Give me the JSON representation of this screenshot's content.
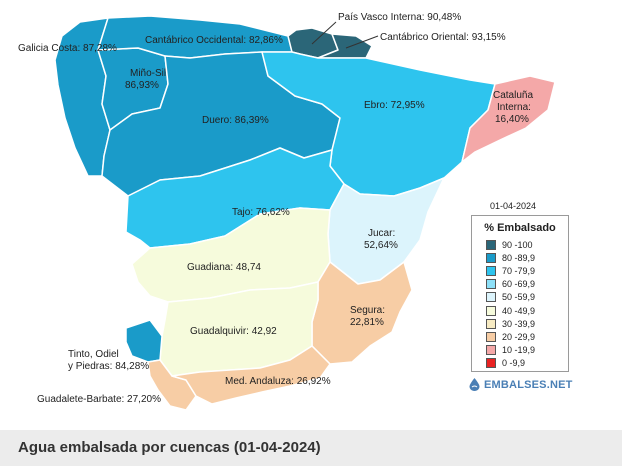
{
  "map": {
    "legend_date": "01-04-2024",
    "legend_title": "% Embalsado",
    "legend_items": [
      {
        "label": "90 -100",
        "color": "#2b6678"
      },
      {
        "label": "80 -89,9",
        "color": "#1a9bc9"
      },
      {
        "label": "70 -79,9",
        "color": "#2ec4ee"
      },
      {
        "label": "60 -69,9",
        "color": "#8de0f8"
      },
      {
        "label": "50 -59,9",
        "color": "#dcf4fc"
      },
      {
        "label": "40 -49,9",
        "color": "#f6fbdc"
      },
      {
        "label": "30 -39,9",
        "color": "#f7ebc3"
      },
      {
        "label": "20 -29,9",
        "color": "#f7cda5"
      },
      {
        "label": "10 -19,9",
        "color": "#f4a8a8"
      },
      {
        "label": "0 -9,9",
        "color": "#e82222"
      }
    ],
    "brand": "EMBALSES.NET",
    "regions": {
      "galicia": {
        "name": "Galicia Costa",
        "value": "87,28%",
        "label": "Galicia Costa: 87,28%",
        "color": "#1a9bc9"
      },
      "minosil": {
        "name": "Miño-Sil",
        "value": "86,93%",
        "label_line1": "Miño-Sil",
        "label_line2": "86,93%",
        "color": "#1a9bc9"
      },
      "cantabrico_occ": {
        "name": "Cantábrico Occidental",
        "value": "82,86%",
        "label": "Cantábrico Occidental: 82,86%",
        "color": "#1a9bc9"
      },
      "pais_vasco": {
        "name": "País Vasco Interna",
        "value": "90,48%",
        "label": "País Vasco Interna: 90,48%",
        "color": "#2b6678"
      },
      "cantabrico_or": {
        "name": "Cantábrico Oriental",
        "value": "93,15%",
        "label": "Cantábrico Oriental: 93,15%",
        "color": "#2b6678"
      },
      "duero": {
        "name": "Duero",
        "value": "86,39%",
        "label": "Duero: 86,39%",
        "color": "#1a9bc9"
      },
      "ebro": {
        "name": "Ebro",
        "value": "72,95%",
        "label": "Ebro: 72,95%",
        "color": "#2ec4ee"
      },
      "cataluna": {
        "name": "Cataluña Interna",
        "value": "16,40%",
        "label_line1": "Cataluña",
        "label_line2": "Interna:",
        "label_line3": "16,40%",
        "color": "#f4a8a8"
      },
      "tajo": {
        "name": "Tajo",
        "value": "76,62%",
        "label": "Tajo: 76,62%",
        "color": "#2ec4ee"
      },
      "jucar": {
        "name": "Jucar",
        "value": "52,64%",
        "label_line1": "Jucar:",
        "label_line2": "52,64%",
        "color": "#dcf4fc"
      },
      "guadiana": {
        "name": "Guadiana",
        "value": "48,74",
        "label": "Guadiana: 48,74",
        "color": "#f6fbdc"
      },
      "segura": {
        "name": "Segura",
        "value": "22,81%",
        "label_line1": "Segura:",
        "label_line2": "22,81%",
        "color": "#f7cda5"
      },
      "guadalquivir": {
        "name": "Guadalquivir",
        "value": "42,92",
        "label": "Guadalquivir: 42,92",
        "color": "#f6fbdc"
      },
      "tinto": {
        "name": "Tinto, Odiel y Piedras",
        "value": "84,28%",
        "label_line1": "Tinto, Odiel",
        "label_line2": "y Piedras: 84,28%",
        "color": "#1a9bc9"
      },
      "med_andaluza": {
        "name": "Med. Andaluza",
        "value": "26,92%",
        "label": "Med. Andaluza: 26,92%",
        "color": "#f7cda5"
      },
      "guadalete": {
        "name": "Guadalete-Barbate",
        "value": "27,20%",
        "label": "Guadalete-Barbate: 27,20%",
        "color": "#f7cda5"
      }
    }
  },
  "footer": {
    "title": "Agua embalsada por cuencas (01-04-2024)"
  }
}
